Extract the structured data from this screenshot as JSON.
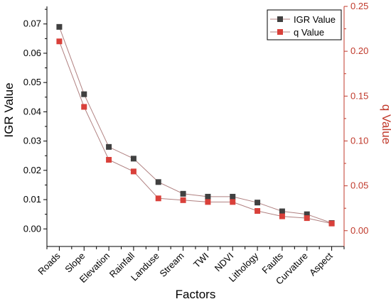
{
  "chart_data": {
    "type": "line",
    "xlabel": "Factors",
    "ylabel_left": "IGR Value",
    "ylabel_right": "q Value",
    "categories": [
      "Roads",
      "Slope",
      "Elevation",
      "Rainfall",
      "Landuse",
      "Stream",
      "TWI",
      "NDVI",
      "Lithology",
      "Faults",
      "Curvature",
      "Aspect"
    ],
    "ylim_left": [
      -0.006,
      0.076
    ],
    "ylim_right": [
      -0.0176,
      0.25
    ],
    "left_ticks": [
      "0.00",
      "0.01",
      "0.02",
      "0.03",
      "0.04",
      "0.05",
      "0.06",
      "0.07"
    ],
    "right_ticks": [
      "0.00",
      "0.05",
      "0.10",
      "0.15",
      "0.20",
      "0.25"
    ],
    "legend_position": "top-right",
    "series": [
      {
        "name": "IGR Value",
        "axis": "left",
        "color": "#404040",
        "values": [
          0.069,
          0.046,
          0.028,
          0.024,
          0.016,
          0.012,
          0.011,
          0.011,
          0.009,
          0.006,
          0.005,
          0.002
        ]
      },
      {
        "name": "q Value",
        "axis": "right",
        "color": "#d9403a",
        "values": [
          0.211,
          0.138,
          0.079,
          0.066,
          0.036,
          0.034,
          0.032,
          0.032,
          0.022,
          0.016,
          0.014,
          0.008
        ]
      }
    ]
  }
}
